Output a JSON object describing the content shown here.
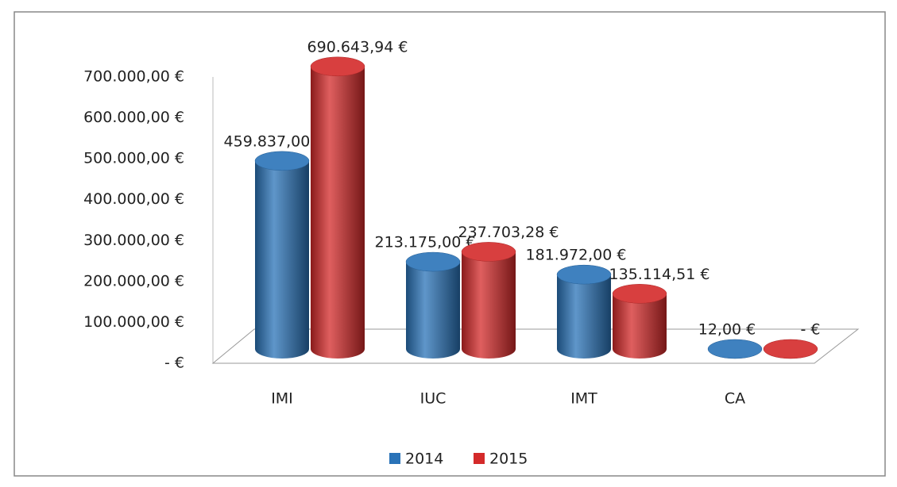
{
  "chart_data": {
    "type": "bar3d",
    "categories": [
      "IMI",
      "IUC",
      "IMT",
      "CA"
    ],
    "series": [
      {
        "name": "2014",
        "color": "#2a73b8",
        "values": [
          459837,
          213175,
          181972,
          12
        ],
        "value_labels": [
          "459.837,00 €",
          "213.175,00 €",
          "181.972,00 €",
          "12,00 €"
        ]
      },
      {
        "name": "2015",
        "color": "#d42a2a",
        "values": [
          690643.94,
          237703.28,
          135114.51,
          0
        ],
        "value_labels": [
          "690.643,94 €",
          "237.703,28 €",
          "135.114,51 €",
          "-   €"
        ]
      }
    ],
    "ylim": [
      0,
      700000
    ],
    "yticks": [
      {
        "value": 0,
        "label": "-   €"
      },
      {
        "value": 100000,
        "label": "100.000,00 €"
      },
      {
        "value": 200000,
        "label": "200.000,00 €"
      },
      {
        "value": 300000,
        "label": "300.000,00 €"
      },
      {
        "value": 400000,
        "label": "400.000,00 €"
      },
      {
        "value": 500000,
        "label": "500.000,00 €"
      },
      {
        "value": 600000,
        "label": "600.000,00 €"
      },
      {
        "value": 700000,
        "label": "700.000,00 €"
      }
    ],
    "grid": false,
    "legend": "bottom"
  }
}
